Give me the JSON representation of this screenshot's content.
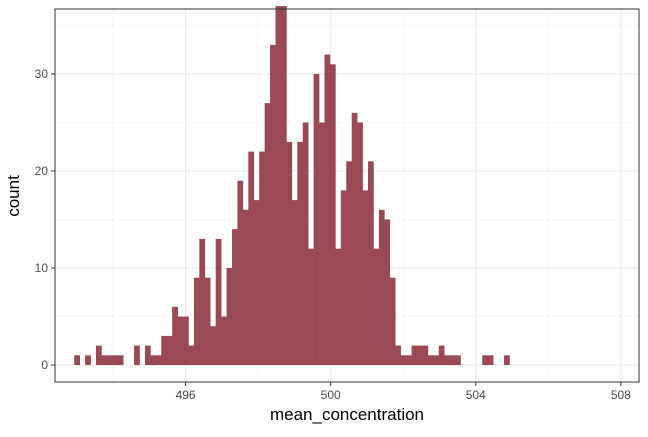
{
  "chart_data": {
    "type": "bar",
    "subtype": "histogram",
    "xlabel": "mean_concentration",
    "ylabel": "count",
    "x_ticks": [
      496,
      500,
      504,
      508
    ],
    "y_ticks": [
      0,
      10,
      20,
      30
    ],
    "xlim": [
      492.4,
      508.5
    ],
    "ylim": [
      -1.75,
      36.7
    ],
    "bin_width": 0.15,
    "first_bin_start": 492.93,
    "counts": [
      1,
      0,
      1,
      0,
      2,
      1,
      1,
      1,
      1,
      0,
      0,
      2,
      0,
      2,
      1,
      1,
      3,
      3,
      6,
      5,
      5,
      2,
      9,
      13,
      9,
      4,
      13,
      5,
      10,
      14,
      19,
      16,
      22,
      17,
      22,
      27,
      33,
      37,
      37,
      23,
      17,
      23,
      25,
      12,
      30,
      25,
      32,
      31,
      12,
      18,
      21,
      26,
      25,
      18,
      21,
      12,
      16,
      15,
      9,
      2,
      1,
      1,
      2,
      2,
      2,
      1,
      1,
      2,
      1,
      1,
      1,
      0,
      0,
      0,
      0,
      1,
      1,
      0,
      0,
      1
    ],
    "fill_color": "#9b4855",
    "grid": true,
    "theme": "bw"
  }
}
